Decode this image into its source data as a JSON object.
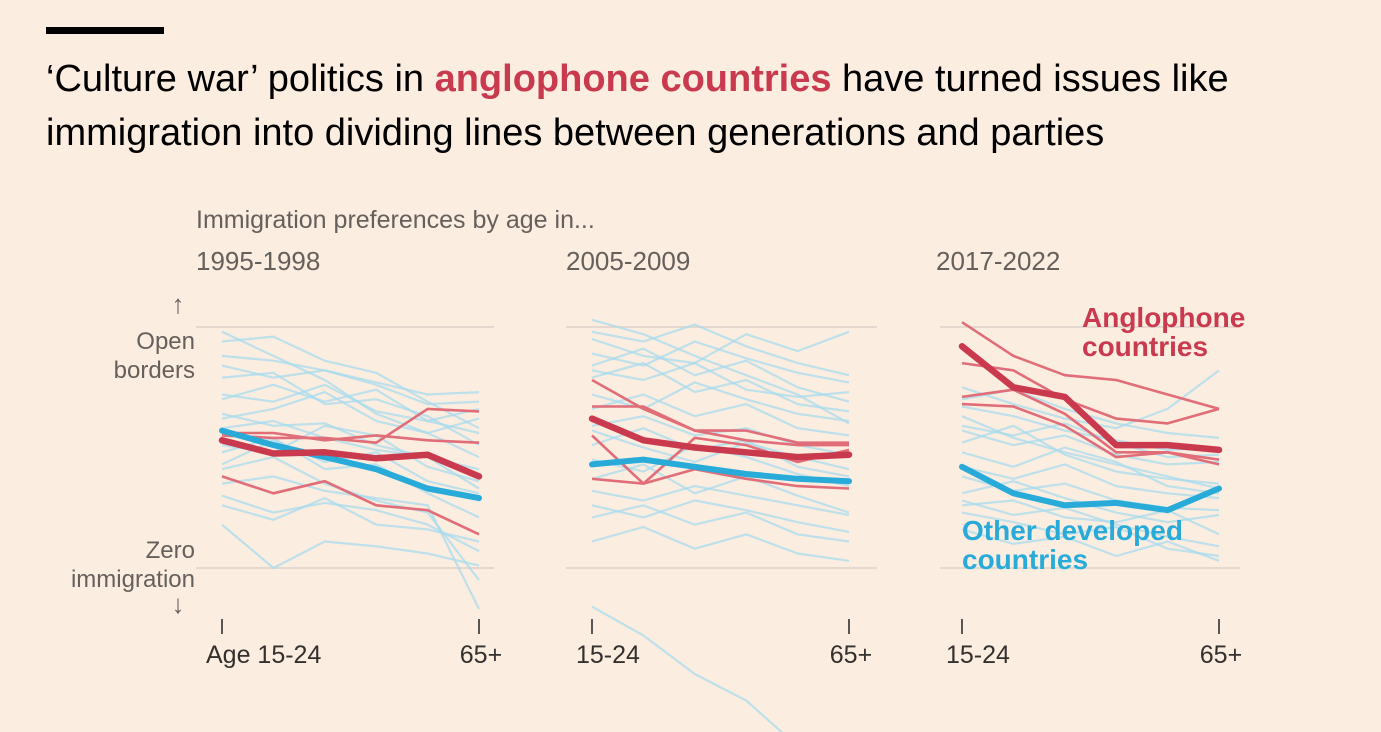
{
  "headline": {
    "prefix": "‘Culture war’ politics in ",
    "highlight": "anglophone countries",
    "suffix": " have turned issues like immigration into dividing lines between generations and parties"
  },
  "colors": {
    "background": "#fcede1",
    "anglophone": "#c93a4e",
    "anglophone_thin": "#e06d78",
    "other": "#29abd9",
    "other_thin": "#a8dbed",
    "text_gray": "#66605c",
    "gridline": "#ddd2c8"
  },
  "chart_data": {
    "type": "line",
    "subtitle": "Immigration preferences by age in...",
    "y_axis": {
      "top_arrow": "↑",
      "top_label": [
        "Open",
        "borders"
      ],
      "bottom_label": [
        "Zero",
        "immigration"
      ],
      "bottom_arrow": "↓",
      "ylim": [
        0,
        100
      ]
    },
    "x": [
      0,
      1,
      2,
      3,
      4,
      5
    ],
    "legend": {
      "anglophone": [
        "Anglophone",
        "countries"
      ],
      "other": [
        "Other developed",
        "countries"
      ]
    },
    "panels": [
      {
        "period": "1995-1998",
        "x_start_label": "Age 15-24",
        "x_end_label": "65+",
        "anglophone_avg": [
          53,
          47.5,
          48,
          45.5,
          47,
          38
        ],
        "other_avg": [
          57,
          51,
          46,
          41,
          33,
          29
        ],
        "anglophone_countries": [
          [
            56,
            56,
            53,
            55,
            53,
            52
          ],
          [
            38,
            31,
            36,
            26,
            24,
            14
          ],
          [
            55,
            54,
            54,
            52,
            66,
            65
          ]
        ],
        "other_countries": [
          [
            98,
            88,
            78,
            64,
            56,
            46
          ],
          [
            70,
            76,
            69,
            74,
            61,
            56
          ],
          [
            94,
            96,
            86,
            81,
            69,
            58
          ],
          [
            43,
            53,
            44,
            48,
            36,
            31
          ],
          [
            64,
            59,
            60,
            51,
            46,
            41
          ],
          [
            18,
            0,
            11,
            9,
            6,
            1
          ],
          [
            30,
            23,
            27,
            24,
            18,
            7
          ],
          [
            79,
            81,
            68,
            70,
            63,
            51
          ],
          [
            51,
            48,
            59,
            55,
            42,
            36
          ],
          [
            35,
            38,
            32,
            29,
            26,
            -17
          ],
          [
            88,
            86,
            82,
            77,
            72,
            73
          ],
          [
            62,
            66,
            73,
            61,
            56,
            62
          ],
          [
            26,
            20,
            29,
            18,
            16,
            11
          ],
          [
            48,
            54,
            41,
            43,
            31,
            21
          ],
          [
            72,
            69,
            76,
            65,
            61,
            66
          ],
          [
            41,
            46,
            35,
            28,
            23,
            -5
          ],
          [
            84,
            79,
            82,
            76,
            68,
            69
          ],
          [
            58,
            61,
            54,
            49,
            46,
            33
          ]
        ]
      },
      {
        "period": "2005-2009",
        "x_start_label": "15-24",
        "x_end_label": "65+",
        "anglophone_avg": [
          62,
          53,
          50,
          48,
          46,
          47
        ],
        "other_avg": [
          43,
          45,
          42,
          39,
          37,
          36
        ],
        "anglophone_countries": [
          [
            78,
            66,
            57,
            53,
            51,
            51
          ],
          [
            67,
            67,
            57,
            57,
            52,
            52
          ],
          [
            37,
            35,
            41,
            37,
            34,
            33
          ],
          [
            55,
            35,
            54,
            51,
            44,
            49
          ]
        ],
        "other_countries": [
          [
            103,
            97,
            88,
            80,
            72,
            60
          ],
          [
            79,
            85,
            73,
            78,
            68,
            65
          ],
          [
            98,
            94,
            101,
            92,
            85,
            80
          ],
          [
            51,
            58,
            49,
            53,
            42,
            38
          ],
          [
            32,
            28,
            34,
            30,
            26,
            22
          ],
          [
            66,
            72,
            63,
            68,
            58,
            55
          ],
          [
            21,
            26,
            18,
            23,
            14,
            11
          ],
          [
            89,
            84,
            94,
            87,
            81,
            77
          ],
          [
            45,
            40,
            51,
            46,
            39,
            34
          ],
          [
            26,
            21,
            28,
            24,
            19,
            15
          ],
          [
            59,
            63,
            55,
            58,
            51,
            47
          ],
          [
            84,
            91,
            80,
            86,
            75,
            69
          ],
          [
            -16,
            -28,
            -44,
            -55,
            -74,
            -69
          ],
          [
            37,
            43,
            31,
            38,
            30,
            23
          ],
          [
            72,
            66,
            77,
            70,
            64,
            61
          ],
          [
            95,
            88,
            85,
            97,
            90,
            98
          ],
          [
            11,
            17,
            8,
            14,
            6,
            3
          ],
          [
            57,
            50,
            44,
            52,
            46,
            41
          ],
          [
            82,
            78,
            85,
            74,
            71,
            73
          ]
        ]
      },
      {
        "period": "2017-2022",
        "x_start_label": "15-24",
        "x_end_label": "65+",
        "anglophone_avg": [
          92,
          75,
          71,
          51,
          51,
          49
        ],
        "other_avg": [
          42,
          31,
          26,
          27,
          24,
          33
        ],
        "anglophone_countries": [
          [
            102,
            88,
            80,
            78,
            72,
            66
          ],
          [
            71,
            74,
            64,
            48,
            48,
            43
          ],
          [
            68,
            67,
            59,
            46,
            48,
            45
          ],
          [
            85,
            82,
            70,
            62,
            60,
            66
          ]
        ],
        "other_countries": [
          [
            63,
            54,
            48,
            43,
            38,
            33
          ],
          [
            48,
            42,
            50,
            44,
            34,
            31
          ],
          [
            28,
            22,
            25,
            18,
            13,
            9
          ],
          [
            70,
            74,
            66,
            60,
            56,
            54
          ],
          [
            57,
            51,
            55,
            47,
            43,
            44
          ],
          [
            23,
            19,
            14,
            17,
            8,
            5
          ],
          [
            42,
            37,
            43,
            34,
            31,
            29
          ],
          [
            75,
            68,
            62,
            58,
            66,
            82
          ],
          [
            31,
            36,
            29,
            23,
            19,
            22
          ],
          [
            52,
            59,
            47,
            40,
            37,
            35
          ],
          [
            16,
            10,
            13,
            5,
            11,
            3
          ],
          [
            67,
            63,
            57,
            53,
            49,
            50
          ],
          [
            38,
            32,
            35,
            28,
            25,
            24
          ],
          [
            59,
            55,
            60,
            52,
            46,
            47
          ],
          [
            26,
            28,
            21,
            19,
            24,
            14
          ]
        ]
      }
    ]
  }
}
